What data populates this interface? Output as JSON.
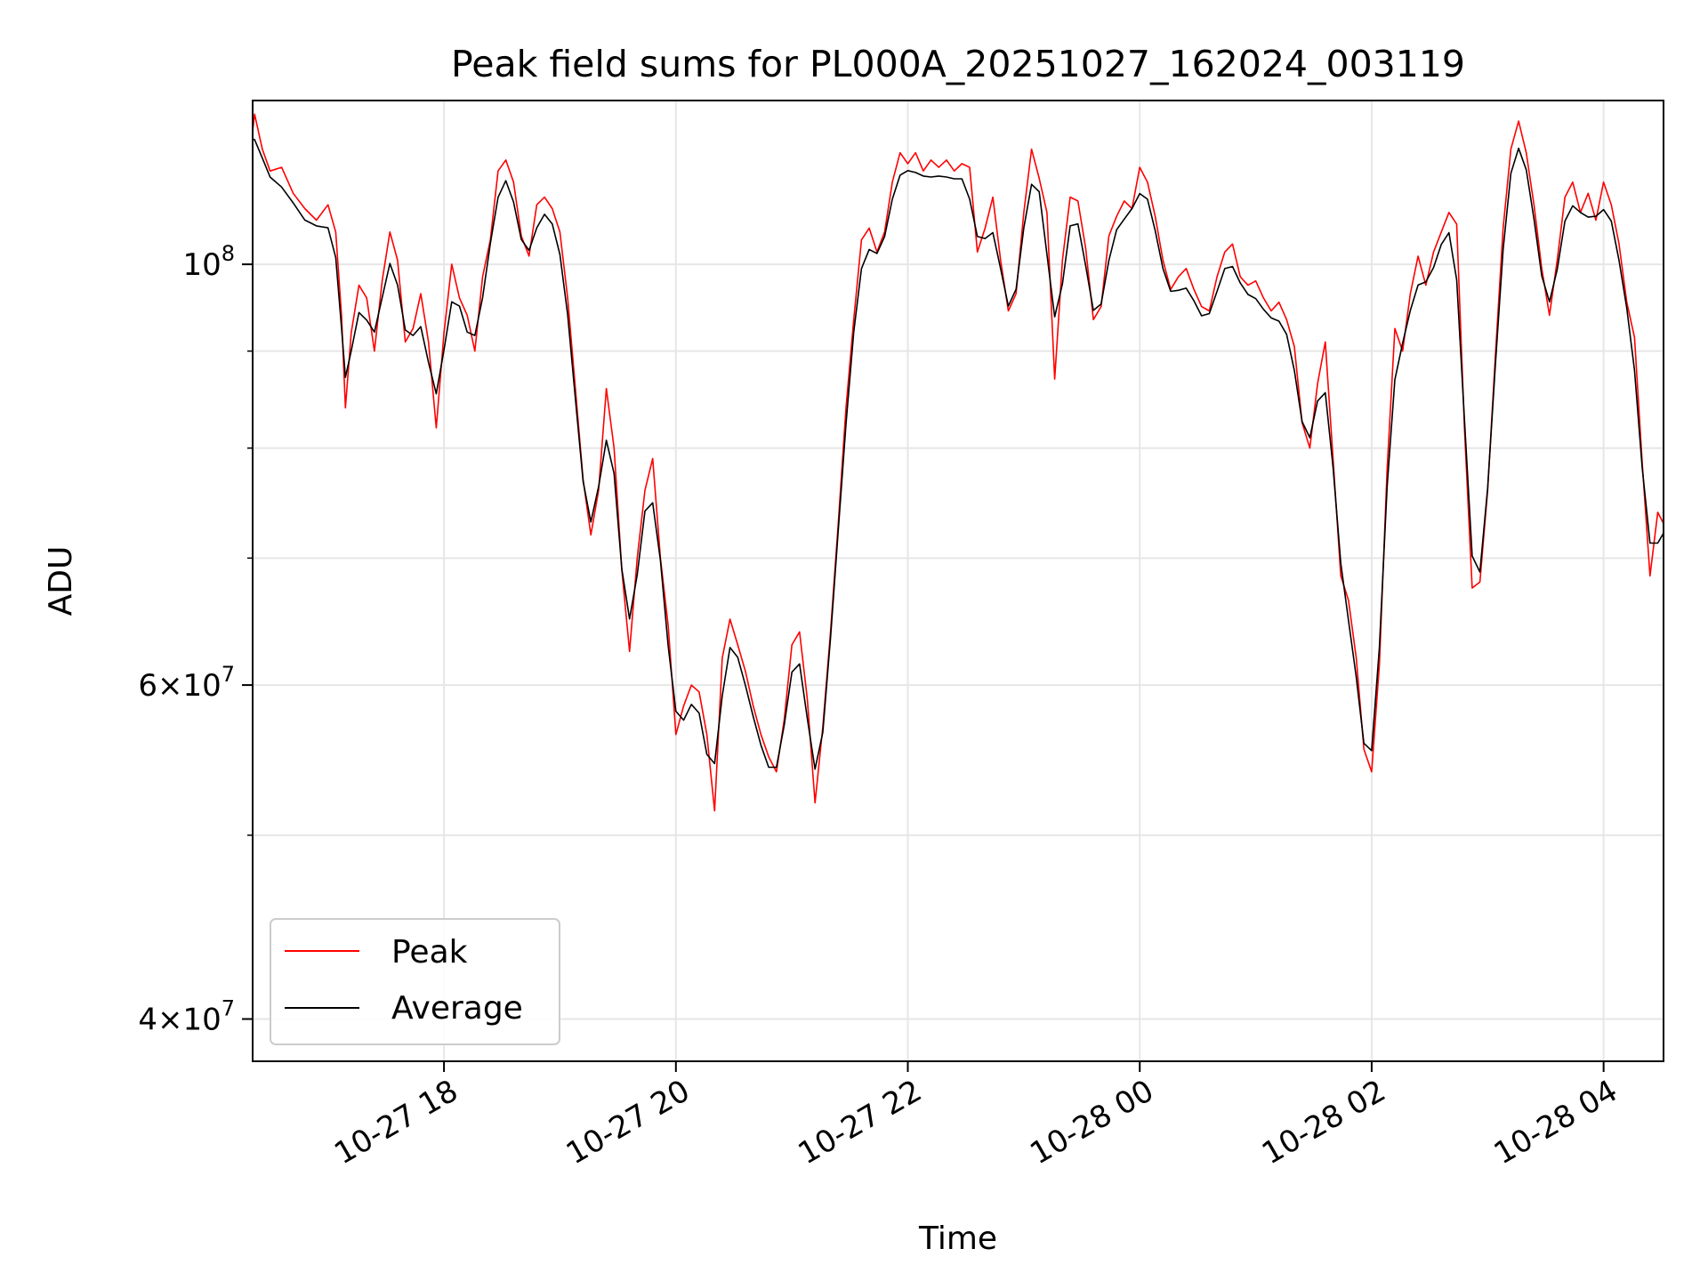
{
  "chart_data": {
    "type": "line",
    "title": "Peak field sums for PL000A_20251027_162024_003119",
    "xlabel": "Time",
    "ylabel": "ADU",
    "x_range": [
      "2025-10-27T16:21:00",
      "2025-10-28T04:31:00"
    ],
    "x_ticks": [
      {
        "t": "2025-10-27T18:00:00",
        "label": "10-27 18"
      },
      {
        "t": "2025-10-27T20:00:00",
        "label": "10-27 20"
      },
      {
        "t": "2025-10-27T22:00:00",
        "label": "10-27 22"
      },
      {
        "t": "2025-10-28T00:00:00",
        "label": "10-28 00"
      },
      {
        "t": "2025-10-28T02:00:00",
        "label": "10-28 02"
      },
      {
        "t": "2025-10-28T04:00:00",
        "label": "10-28 04"
      }
    ],
    "y_scale": "log",
    "ylim": [
      38000000,
      122000000
    ],
    "y_ticks": [
      {
        "value": 100000000,
        "base": "10",
        "exp": "8"
      },
      {
        "value": 60000000,
        "mant": "6",
        "base": "10",
        "exp": "7"
      },
      {
        "value": 40000000,
        "mant": "4",
        "base": "10",
        "exp": "7"
      }
    ],
    "y_minor_grid": [
      50000000,
      70000000,
      80000000,
      90000000
    ],
    "grid": true,
    "legend_position": "lower-left",
    "series": [
      {
        "name": "Peak",
        "color": "#ff0000",
        "points": [
          [
            "2025-10-27T16:21:00",
            117500000
          ],
          [
            "2025-10-27T16:22:00",
            120000000
          ],
          [
            "2025-10-27T16:26:00",
            115000000
          ],
          [
            "2025-10-27T16:30:00",
            112000000
          ],
          [
            "2025-10-27T16:36:00",
            112500000
          ],
          [
            "2025-10-27T16:42:00",
            109000000
          ],
          [
            "2025-10-27T16:48:00",
            107000000
          ],
          [
            "2025-10-27T16:54:00",
            105500000
          ],
          [
            "2025-10-27T17:00:00",
            107500000
          ],
          [
            "2025-10-27T17:04:00",
            104000000
          ],
          [
            "2025-10-27T17:07:00",
            94000000
          ],
          [
            "2025-10-27T17:09:00",
            84000000
          ],
          [
            "2025-10-27T17:12:00",
            92000000
          ],
          [
            "2025-10-27T17:16:00",
            97500000
          ],
          [
            "2025-10-27T17:20:00",
            96000000
          ],
          [
            "2025-10-27T17:24:00",
            90000000
          ],
          [
            "2025-10-27T17:28:00",
            98000000
          ],
          [
            "2025-10-27T17:32:00",
            104000000
          ],
          [
            "2025-10-27T17:36:00",
            100500000
          ],
          [
            "2025-10-27T17:40:00",
            91000000
          ],
          [
            "2025-10-27T17:44:00",
            92500000
          ],
          [
            "2025-10-27T17:48:00",
            96500000
          ],
          [
            "2025-10-27T17:52:00",
            91000000
          ],
          [
            "2025-10-27T17:56:00",
            82000000
          ],
          [
            "2025-10-27T18:00:00",
            92000000
          ],
          [
            "2025-10-27T18:04:00",
            100000000
          ],
          [
            "2025-10-27T18:08:00",
            96000000
          ],
          [
            "2025-10-27T18:12:00",
            94000000
          ],
          [
            "2025-10-27T18:16:00",
            90000000
          ],
          [
            "2025-10-27T18:20:00",
            98500000
          ],
          [
            "2025-10-27T18:24:00",
            103000000
          ],
          [
            "2025-10-27T18:28:00",
            112000000
          ],
          [
            "2025-10-27T18:32:00",
            113500000
          ],
          [
            "2025-10-27T18:36:00",
            110500000
          ],
          [
            "2025-10-27T18:40:00",
            103500000
          ],
          [
            "2025-10-27T18:44:00",
            101000000
          ],
          [
            "2025-10-27T18:48:00",
            107500000
          ],
          [
            "2025-10-27T18:52:00",
            108500000
          ],
          [
            "2025-10-27T18:56:00",
            107000000
          ],
          [
            "2025-10-27T19:00:00",
            104000000
          ],
          [
            "2025-10-27T19:04:00",
            96000000
          ],
          [
            "2025-10-27T19:08:00",
            86000000
          ],
          [
            "2025-10-27T19:12:00",
            77000000
          ],
          [
            "2025-10-27T19:16:00",
            72000000
          ],
          [
            "2025-10-27T19:20:00",
            76000000
          ],
          [
            "2025-10-27T19:24:00",
            86000000
          ],
          [
            "2025-10-27T19:28:00",
            80000000
          ],
          [
            "2025-10-27T19:32:00",
            69000000
          ],
          [
            "2025-10-27T19:36:00",
            62500000
          ],
          [
            "2025-10-27T19:40:00",
            70000000
          ],
          [
            "2025-10-27T19:44:00",
            76000000
          ],
          [
            "2025-10-27T19:48:00",
            79000000
          ],
          [
            "2025-10-27T19:52:00",
            70000000
          ],
          [
            "2025-10-27T19:56:00",
            64500000
          ],
          [
            "2025-10-27T20:00:00",
            56500000
          ],
          [
            "2025-10-27T20:04:00",
            58500000
          ],
          [
            "2025-10-27T20:08:00",
            60000000
          ],
          [
            "2025-10-27T20:12:00",
            59500000
          ],
          [
            "2025-10-27T20:16:00",
            56500000
          ],
          [
            "2025-10-27T20:20:00",
            51500000
          ],
          [
            "2025-10-27T20:24:00",
            62000000
          ],
          [
            "2025-10-27T20:28:00",
            65000000
          ],
          [
            "2025-10-27T20:32:00",
            63000000
          ],
          [
            "2025-10-27T20:36:00",
            61000000
          ],
          [
            "2025-10-27T20:40:00",
            58500000
          ],
          [
            "2025-10-27T20:44:00",
            56500000
          ],
          [
            "2025-10-27T20:48:00",
            55000000
          ],
          [
            "2025-10-27T20:52:00",
            54000000
          ],
          [
            "2025-10-27T20:56:00",
            57500000
          ],
          [
            "2025-10-27T21:00:00",
            63000000
          ],
          [
            "2025-10-27T21:04:00",
            64000000
          ],
          [
            "2025-10-27T21:08:00",
            59000000
          ],
          [
            "2025-10-27T21:12:00",
            52000000
          ],
          [
            "2025-10-27T21:16:00",
            57000000
          ],
          [
            "2025-10-27T21:20:00",
            64000000
          ],
          [
            "2025-10-27T21:24:00",
            73000000
          ],
          [
            "2025-10-27T21:28:00",
            84000000
          ],
          [
            "2025-10-27T21:32:00",
            93500000
          ],
          [
            "2025-10-27T21:36:00",
            103000000
          ],
          [
            "2025-10-27T21:40:00",
            104500000
          ],
          [
            "2025-10-27T21:44:00",
            101500000
          ],
          [
            "2025-10-27T21:48:00",
            104000000
          ],
          [
            "2025-10-27T21:52:00",
            110500000
          ],
          [
            "2025-10-27T21:56:00",
            114500000
          ],
          [
            "2025-10-27T22:00:00",
            113000000
          ],
          [
            "2025-10-27T22:04:00",
            114500000
          ],
          [
            "2025-10-27T22:08:00",
            112000000
          ],
          [
            "2025-10-27T22:12:00",
            113500000
          ],
          [
            "2025-10-27T22:16:00",
            112500000
          ],
          [
            "2025-10-27T22:20:00",
            113500000
          ],
          [
            "2025-10-27T22:24:00",
            112000000
          ],
          [
            "2025-10-27T22:28:00",
            113000000
          ],
          [
            "2025-10-27T22:32:00",
            112500000
          ],
          [
            "2025-10-27T22:36:00",
            101500000
          ],
          [
            "2025-10-27T22:40:00",
            104500000
          ],
          [
            "2025-10-27T22:44:00",
            108500000
          ],
          [
            "2025-10-27T22:48:00",
            100500000
          ],
          [
            "2025-10-27T22:52:00",
            94500000
          ],
          [
            "2025-10-27T22:56:00",
            96500000
          ],
          [
            "2025-10-27T23:00:00",
            106500000
          ],
          [
            "2025-10-27T23:04:00",
            115000000
          ],
          [
            "2025-10-27T23:08:00",
            111000000
          ],
          [
            "2025-10-27T23:12:00",
            106500000
          ],
          [
            "2025-10-27T23:16:00",
            87000000
          ],
          [
            "2025-10-27T23:20:00",
            100500000
          ],
          [
            "2025-10-27T23:24:00",
            108500000
          ],
          [
            "2025-10-27T23:28:00",
            108000000
          ],
          [
            "2025-10-27T23:32:00",
            102000000
          ],
          [
            "2025-10-27T23:36:00",
            93500000
          ],
          [
            "2025-10-27T23:40:00",
            95000000
          ],
          [
            "2025-10-27T23:44:00",
            103500000
          ],
          [
            "2025-10-27T23:48:00",
            106000000
          ],
          [
            "2025-10-27T23:52:00",
            108000000
          ],
          [
            "2025-10-27T23:56:00",
            107000000
          ],
          [
            "2025-10-28T00:00:00",
            112500000
          ],
          [
            "2025-10-28T00:04:00",
            110500000
          ],
          [
            "2025-10-28T00:08:00",
            106000000
          ],
          [
            "2025-10-28T00:12:00",
            100500000
          ],
          [
            "2025-10-28T00:16:00",
            97000000
          ],
          [
            "2025-10-28T00:20:00",
            98500000
          ],
          [
            "2025-10-28T00:24:00",
            99500000
          ],
          [
            "2025-10-28T00:28:00",
            97000000
          ],
          [
            "2025-10-28T00:32:00",
            95000000
          ],
          [
            "2025-10-28T00:36:00",
            94500000
          ],
          [
            "2025-10-28T00:40:00",
            98500000
          ],
          [
            "2025-10-28T00:44:00",
            101500000
          ],
          [
            "2025-10-28T00:48:00",
            102500000
          ],
          [
            "2025-10-28T00:52:00",
            98500000
          ],
          [
            "2025-10-28T00:56:00",
            97500000
          ],
          [
            "2025-10-28T01:00:00",
            98000000
          ],
          [
            "2025-10-28T01:04:00",
            96000000
          ],
          [
            "2025-10-28T01:08:00",
            94500000
          ],
          [
            "2025-10-28T01:12:00",
            95500000
          ],
          [
            "2025-10-28T01:16:00",
            93500000
          ],
          [
            "2025-10-28T01:20:00",
            90500000
          ],
          [
            "2025-10-28T01:24:00",
            82500000
          ],
          [
            "2025-10-28T01:28:00",
            80000000
          ],
          [
            "2025-10-28T01:32:00",
            86500000
          ],
          [
            "2025-10-28T01:36:00",
            91000000
          ],
          [
            "2025-10-28T01:40:00",
            79000000
          ],
          [
            "2025-10-28T01:44:00",
            68500000
          ],
          [
            "2025-10-28T01:48:00",
            66500000
          ],
          [
            "2025-10-28T01:52:00",
            62000000
          ],
          [
            "2025-10-28T01:56:00",
            55500000
          ],
          [
            "2025-10-28T02:00:00",
            54000000
          ],
          [
            "2025-10-28T02:04:00",
            61500000
          ],
          [
            "2025-10-28T02:08:00",
            78000000
          ],
          [
            "2025-10-28T02:12:00",
            92500000
          ],
          [
            "2025-10-28T02:16:00",
            90000000
          ],
          [
            "2025-10-28T02:20:00",
            96500000
          ],
          [
            "2025-10-28T02:24:00",
            101000000
          ],
          [
            "2025-10-28T02:28:00",
            97500000
          ],
          [
            "2025-10-28T02:32:00",
            101500000
          ],
          [
            "2025-10-28T02:36:00",
            104000000
          ],
          [
            "2025-10-28T02:40:00",
            106500000
          ],
          [
            "2025-10-28T02:44:00",
            105000000
          ],
          [
            "2025-10-28T02:48:00",
            82000000
          ],
          [
            "2025-10-28T02:52:00",
            67500000
          ],
          [
            "2025-10-28T02:56:00",
            68000000
          ],
          [
            "2025-10-28T03:00:00",
            76000000
          ],
          [
            "2025-10-28T03:04:00",
            89500000
          ],
          [
            "2025-10-28T03:08:00",
            104500000
          ],
          [
            "2025-10-28T03:12:00",
            115000000
          ],
          [
            "2025-10-28T03:16:00",
            119000000
          ],
          [
            "2025-10-28T03:20:00",
            114500000
          ],
          [
            "2025-10-28T03:24:00",
            107500000
          ],
          [
            "2025-10-28T03:28:00",
            99500000
          ],
          [
            "2025-10-28T03:32:00",
            94000000
          ],
          [
            "2025-10-28T03:36:00",
            100500000
          ],
          [
            "2025-10-28T03:40:00",
            108500000
          ],
          [
            "2025-10-28T03:44:00",
            110500000
          ],
          [
            "2025-10-28T03:48:00",
            106500000
          ],
          [
            "2025-10-28T03:52:00",
            109000000
          ],
          [
            "2025-10-28T03:56:00",
            105500000
          ],
          [
            "2025-10-28T04:00:00",
            110500000
          ],
          [
            "2025-10-28T04:04:00",
            107500000
          ],
          [
            "2025-10-28T04:08:00",
            102500000
          ],
          [
            "2025-10-28T04:12:00",
            95500000
          ],
          [
            "2025-10-28T04:16:00",
            91500000
          ],
          [
            "2025-10-28T04:20:00",
            78500000
          ],
          [
            "2025-10-28T04:24:00",
            68500000
          ],
          [
            "2025-10-28T04:28:00",
            74000000
          ],
          [
            "2025-10-28T04:31:00",
            73000000
          ]
        ]
      },
      {
        "name": "Average",
        "color": "#000000",
        "points": []
      }
    ]
  }
}
